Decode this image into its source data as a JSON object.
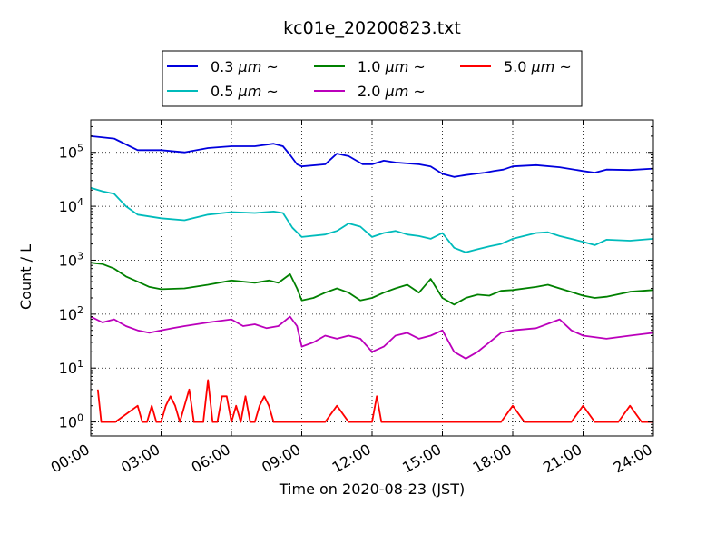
{
  "chart_data": {
    "type": "line",
    "title": "kc01e_20200823.txt",
    "xlabel": "Time on 2020-08-23 (JST)",
    "ylabel": "Count / L",
    "x_ticks": [
      "00:00",
      "03:00",
      "06:00",
      "09:00",
      "12:00",
      "15:00",
      "18:00",
      "21:00",
      "24:00"
    ],
    "y_ticks": [
      {
        "base": "10",
        "exp": "0",
        "value": 1
      },
      {
        "base": "10",
        "exp": "1",
        "value": 10
      },
      {
        "base": "10",
        "exp": "2",
        "value": 100
      },
      {
        "base": "10",
        "exp": "3",
        "value": 1000
      },
      {
        "base": "10",
        "exp": "4",
        "value": 10000
      },
      {
        "base": "10",
        "exp": "5",
        "value": 100000
      }
    ],
    "xlim_hours": [
      0,
      24
    ],
    "ylim": [
      0.55,
      400000
    ],
    "yscale": "log",
    "grid": true,
    "legend_position": "top-center",
    "series": [
      {
        "name": "0.3 μm ~",
        "legend_unit": "μm",
        "legend_size": "0.3",
        "legend_suffix": "~",
        "color": "#0000dd",
        "x": [
          0,
          1,
          2,
          3,
          4,
          5,
          6,
          7,
          7.8,
          8.2,
          8.5,
          8.8,
          9,
          10,
          10.5,
          11,
          11.6,
          12,
          12.5,
          13,
          14,
          14.5,
          15,
          15.5,
          16,
          16.4,
          16.8,
          17.2,
          17.6,
          18,
          19,
          20,
          21,
          21.5,
          22,
          23,
          24
        ],
        "y": [
          200000,
          180000,
          110000,
          110000,
          100000,
          120000,
          130000,
          130000,
          145000,
          130000,
          90000,
          60000,
          55000,
          60000,
          95000,
          85000,
          60000,
          60000,
          70000,
          65000,
          60000,
          55000,
          40000,
          35000,
          38000,
          40000,
          42000,
          45000,
          48000,
          55000,
          58000,
          53000,
          45000,
          42000,
          48000,
          47000,
          50000
        ]
      },
      {
        "name": "0.5 μm ~",
        "legend_unit": "μm",
        "legend_size": "0.5",
        "legend_suffix": "~",
        "color": "#00bbbb",
        "x": [
          0,
          0.5,
          1,
          1.5,
          2,
          3,
          4,
          5,
          6,
          7,
          7.8,
          8.2,
          8.6,
          9,
          10,
          10.5,
          11,
          11.5,
          12,
          12.5,
          13,
          13.5,
          14,
          14.5,
          15,
          15.5,
          16,
          16.5,
          17,
          17.5,
          18,
          19,
          19.5,
          20,
          21,
          21.5,
          22,
          23,
          24
        ],
        "y": [
          22000,
          19000,
          17000,
          10000,
          7000,
          6000,
          5500,
          7000,
          7800,
          7500,
          8000,
          7500,
          4000,
          2700,
          3000,
          3500,
          4800,
          4200,
          2700,
          3200,
          3500,
          3000,
          2800,
          2500,
          3200,
          1700,
          1400,
          1600,
          1800,
          2000,
          2500,
          3200,
          3300,
          2800,
          2200,
          1900,
          2400,
          2300,
          2500
        ]
      },
      {
        "name": "1.0 μm ~",
        "legend_unit": "μm",
        "legend_size": "1.0",
        "legend_suffix": "~",
        "color": "#008000",
        "x": [
          0,
          0.5,
          1,
          1.5,
          2,
          2.5,
          3,
          4,
          5,
          6,
          7,
          7.6,
          8,
          8.5,
          8.8,
          9,
          9.5,
          10,
          10.5,
          11,
          11.5,
          12,
          12.5,
          13,
          13.5,
          14,
          14.5,
          15,
          15.5,
          16,
          16.5,
          17,
          17.5,
          18,
          19,
          19.5,
          20,
          21,
          21.5,
          22,
          23,
          24
        ],
        "y": [
          900,
          850,
          700,
          500,
          400,
          320,
          290,
          300,
          350,
          420,
          380,
          420,
          380,
          550,
          300,
          180,
          200,
          250,
          300,
          250,
          180,
          200,
          250,
          300,
          350,
          250,
          450,
          200,
          150,
          200,
          230,
          220,
          270,
          280,
          320,
          350,
          300,
          220,
          200,
          210,
          260,
          280
        ]
      },
      {
        "name": "2.0 μm ~",
        "legend_unit": "μm",
        "legend_size": "2.0",
        "legend_suffix": "~",
        "color": "#bb00bb",
        "x": [
          0,
          0.5,
          1,
          1.5,
          2,
          2.5,
          3,
          3.5,
          4,
          5,
          6,
          6.5,
          7,
          7.5,
          8,
          8.5,
          8.8,
          9,
          9.5,
          10,
          10.5,
          11,
          11.5,
          12,
          12.5,
          13,
          13.5,
          14,
          14.5,
          15,
          15.5,
          16,
          16.5,
          17,
          17.5,
          18,
          19,
          20,
          20.5,
          21,
          22,
          23,
          24
        ],
        "y": [
          90,
          70,
          80,
          60,
          50,
          45,
          50,
          55,
          60,
          70,
          80,
          60,
          65,
          55,
          60,
          90,
          60,
          25,
          30,
          40,
          35,
          40,
          35,
          20,
          25,
          40,
          45,
          35,
          40,
          50,
          20,
          15,
          20,
          30,
          45,
          50,
          55,
          80,
          50,
          40,
          35,
          40,
          45
        ]
      },
      {
        "name": "5.0 μm ~",
        "legend_unit": "μm",
        "legend_size": "5.0",
        "legend_suffix": "~",
        "color": "#ff0000",
        "x": [
          0.3,
          0.45,
          0.6,
          0.75,
          0.9,
          1.05,
          2,
          2.2,
          2.4,
          2.6,
          2.8,
          3,
          3.2,
          3.4,
          3.6,
          3.8,
          4,
          4.2,
          4.4,
          4.6,
          4.8,
          5,
          5.2,
          5.4,
          5.6,
          5.8,
          6,
          6.2,
          6.4,
          6.6,
          6.8,
          7,
          7.2,
          7.4,
          7.6,
          7.8,
          8.5,
          9,
          9.5,
          10,
          10.5,
          11,
          11.5,
          12,
          12.2,
          12.4,
          12.6,
          13,
          13.5,
          14,
          15,
          15.5,
          16,
          16.5,
          17,
          17.5,
          18,
          18.5,
          19,
          19.5,
          20,
          20.5,
          21,
          21.5,
          22,
          22.5,
          23,
          23.5,
          24
        ],
        "y": [
          4,
          1,
          1,
          1,
          1,
          1,
          2,
          1,
          1,
          2,
          1,
          1,
          2,
          3,
          2,
          1,
          2,
          4,
          1,
          1,
          1,
          6,
          1,
          1,
          3,
          3,
          1,
          2,
          1,
          3,
          1,
          1,
          2,
          3,
          2,
          1,
          1,
          1,
          1,
          1,
          2,
          1,
          1,
          1,
          3,
          1,
          1,
          1,
          1,
          1,
          1,
          1,
          1,
          1,
          1,
          1,
          2,
          1,
          1,
          1,
          1,
          1,
          2,
          1,
          1,
          1,
          2,
          1,
          1
        ]
      }
    ]
  }
}
